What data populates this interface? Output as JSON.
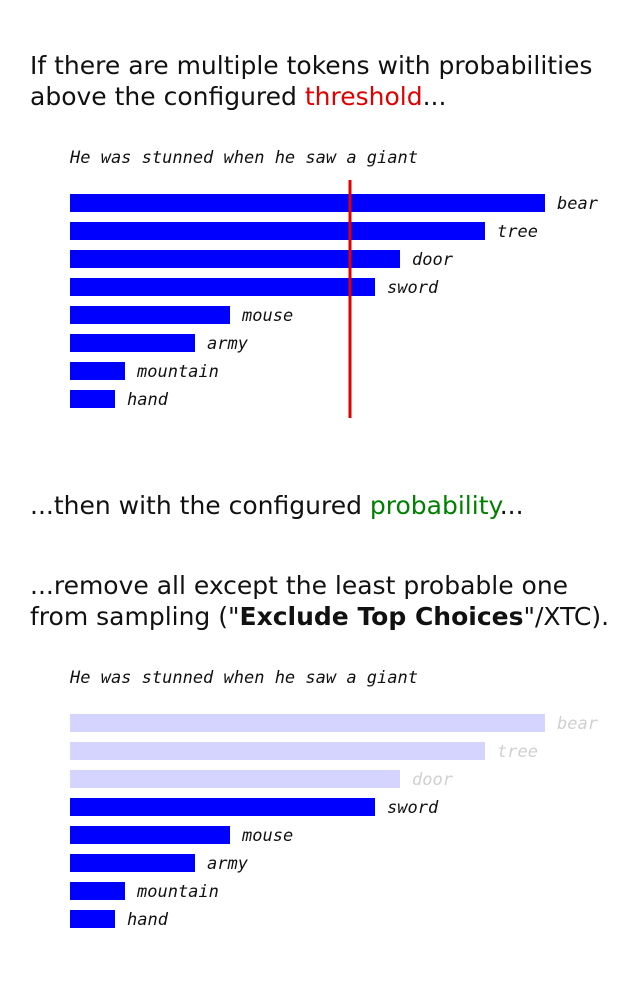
{
  "intro": {
    "line1": "If there are multiple tokens with probabilities",
    "line2_before": "above the configured ",
    "line2_highlight": "threshold",
    "line2_after": "..."
  },
  "middle": {
    "before": "...then with the configured ",
    "highlight": "probability",
    "after": "..."
  },
  "outro": {
    "line1": "...remove all except the least probable one",
    "line2_before": "from sampling (\"",
    "line2_bold": "Exclude Top Choices",
    "line2_after": "\"/XTC)."
  },
  "colors": {
    "bar": "#0000ff",
    "bar_excluded": "#d4d4ff",
    "label": "#111111",
    "label_excluded": "#d0d0d0",
    "threshold": "#e00000",
    "threshold_word": "#e00000",
    "probability_word": "#008000"
  },
  "chart_data": [
    {
      "type": "bar",
      "orientation": "horizontal",
      "title": "He was stunned when he saw a giant",
      "categories": [
        "bear",
        "tree",
        "door",
        "sword",
        "mouse",
        "army",
        "mountain",
        "hand"
      ],
      "values": [
        0.95,
        0.83,
        0.66,
        0.61,
        0.32,
        0.25,
        0.11,
        0.09
      ],
      "threshold": 0.56,
      "excluded": [
        false,
        false,
        false,
        false,
        false,
        false,
        false,
        false
      ]
    },
    {
      "type": "bar",
      "orientation": "horizontal",
      "title": "He was stunned when he saw a giant",
      "categories": [
        "bear",
        "tree",
        "door",
        "sword",
        "mouse",
        "army",
        "mountain",
        "hand"
      ],
      "values": [
        0.95,
        0.83,
        0.66,
        0.61,
        0.32,
        0.25,
        0.11,
        0.09
      ],
      "excluded": [
        true,
        true,
        true,
        false,
        false,
        false,
        false,
        false
      ]
    }
  ]
}
